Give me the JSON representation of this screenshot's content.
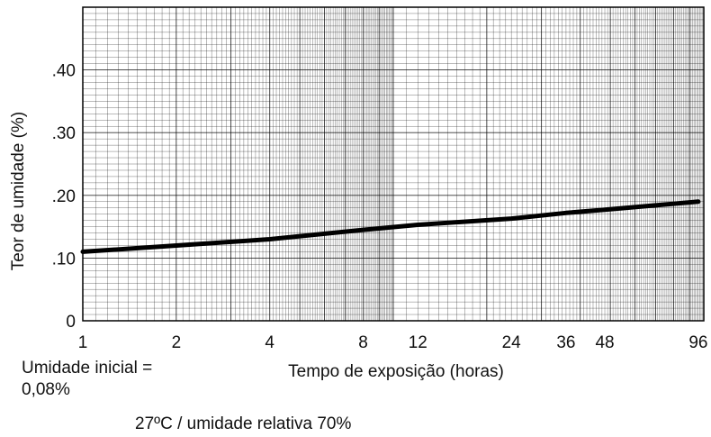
{
  "chart_data": {
    "type": "line",
    "title": "",
    "xlabel": "Tempo de exposição (horas)",
    "ylabel": "Teor de umidade (%)",
    "x_scale": "log",
    "xlim": [
      1,
      100
    ],
    "ylim": [
      0,
      0.5
    ],
    "grid": true,
    "x_ticks": [
      1,
      2,
      4,
      8,
      12,
      24,
      36,
      48,
      96
    ],
    "x_tick_labels": [
      "1",
      "2",
      "4",
      "8",
      "12",
      "24",
      "36",
      "48",
      "96"
    ],
    "y_ticks": [
      0,
      0.1,
      0.2,
      0.3,
      0.4
    ],
    "y_tick_labels": [
      "0",
      ".10",
      ".20",
      ".30",
      ".40"
    ],
    "series": [
      {
        "name": "",
        "color": "#000000",
        "x": [
          1,
          2,
          4,
          8,
          12,
          24,
          36,
          48,
          96
        ],
        "y": [
          0.11,
          0.12,
          0.13,
          0.145,
          0.153,
          0.163,
          0.172,
          0.177,
          0.19
        ]
      }
    ]
  },
  "notes": {
    "initial_moisture": "Umidade inicial = 0,08%",
    "condition": "27ºC / umidade relativa 70%"
  }
}
